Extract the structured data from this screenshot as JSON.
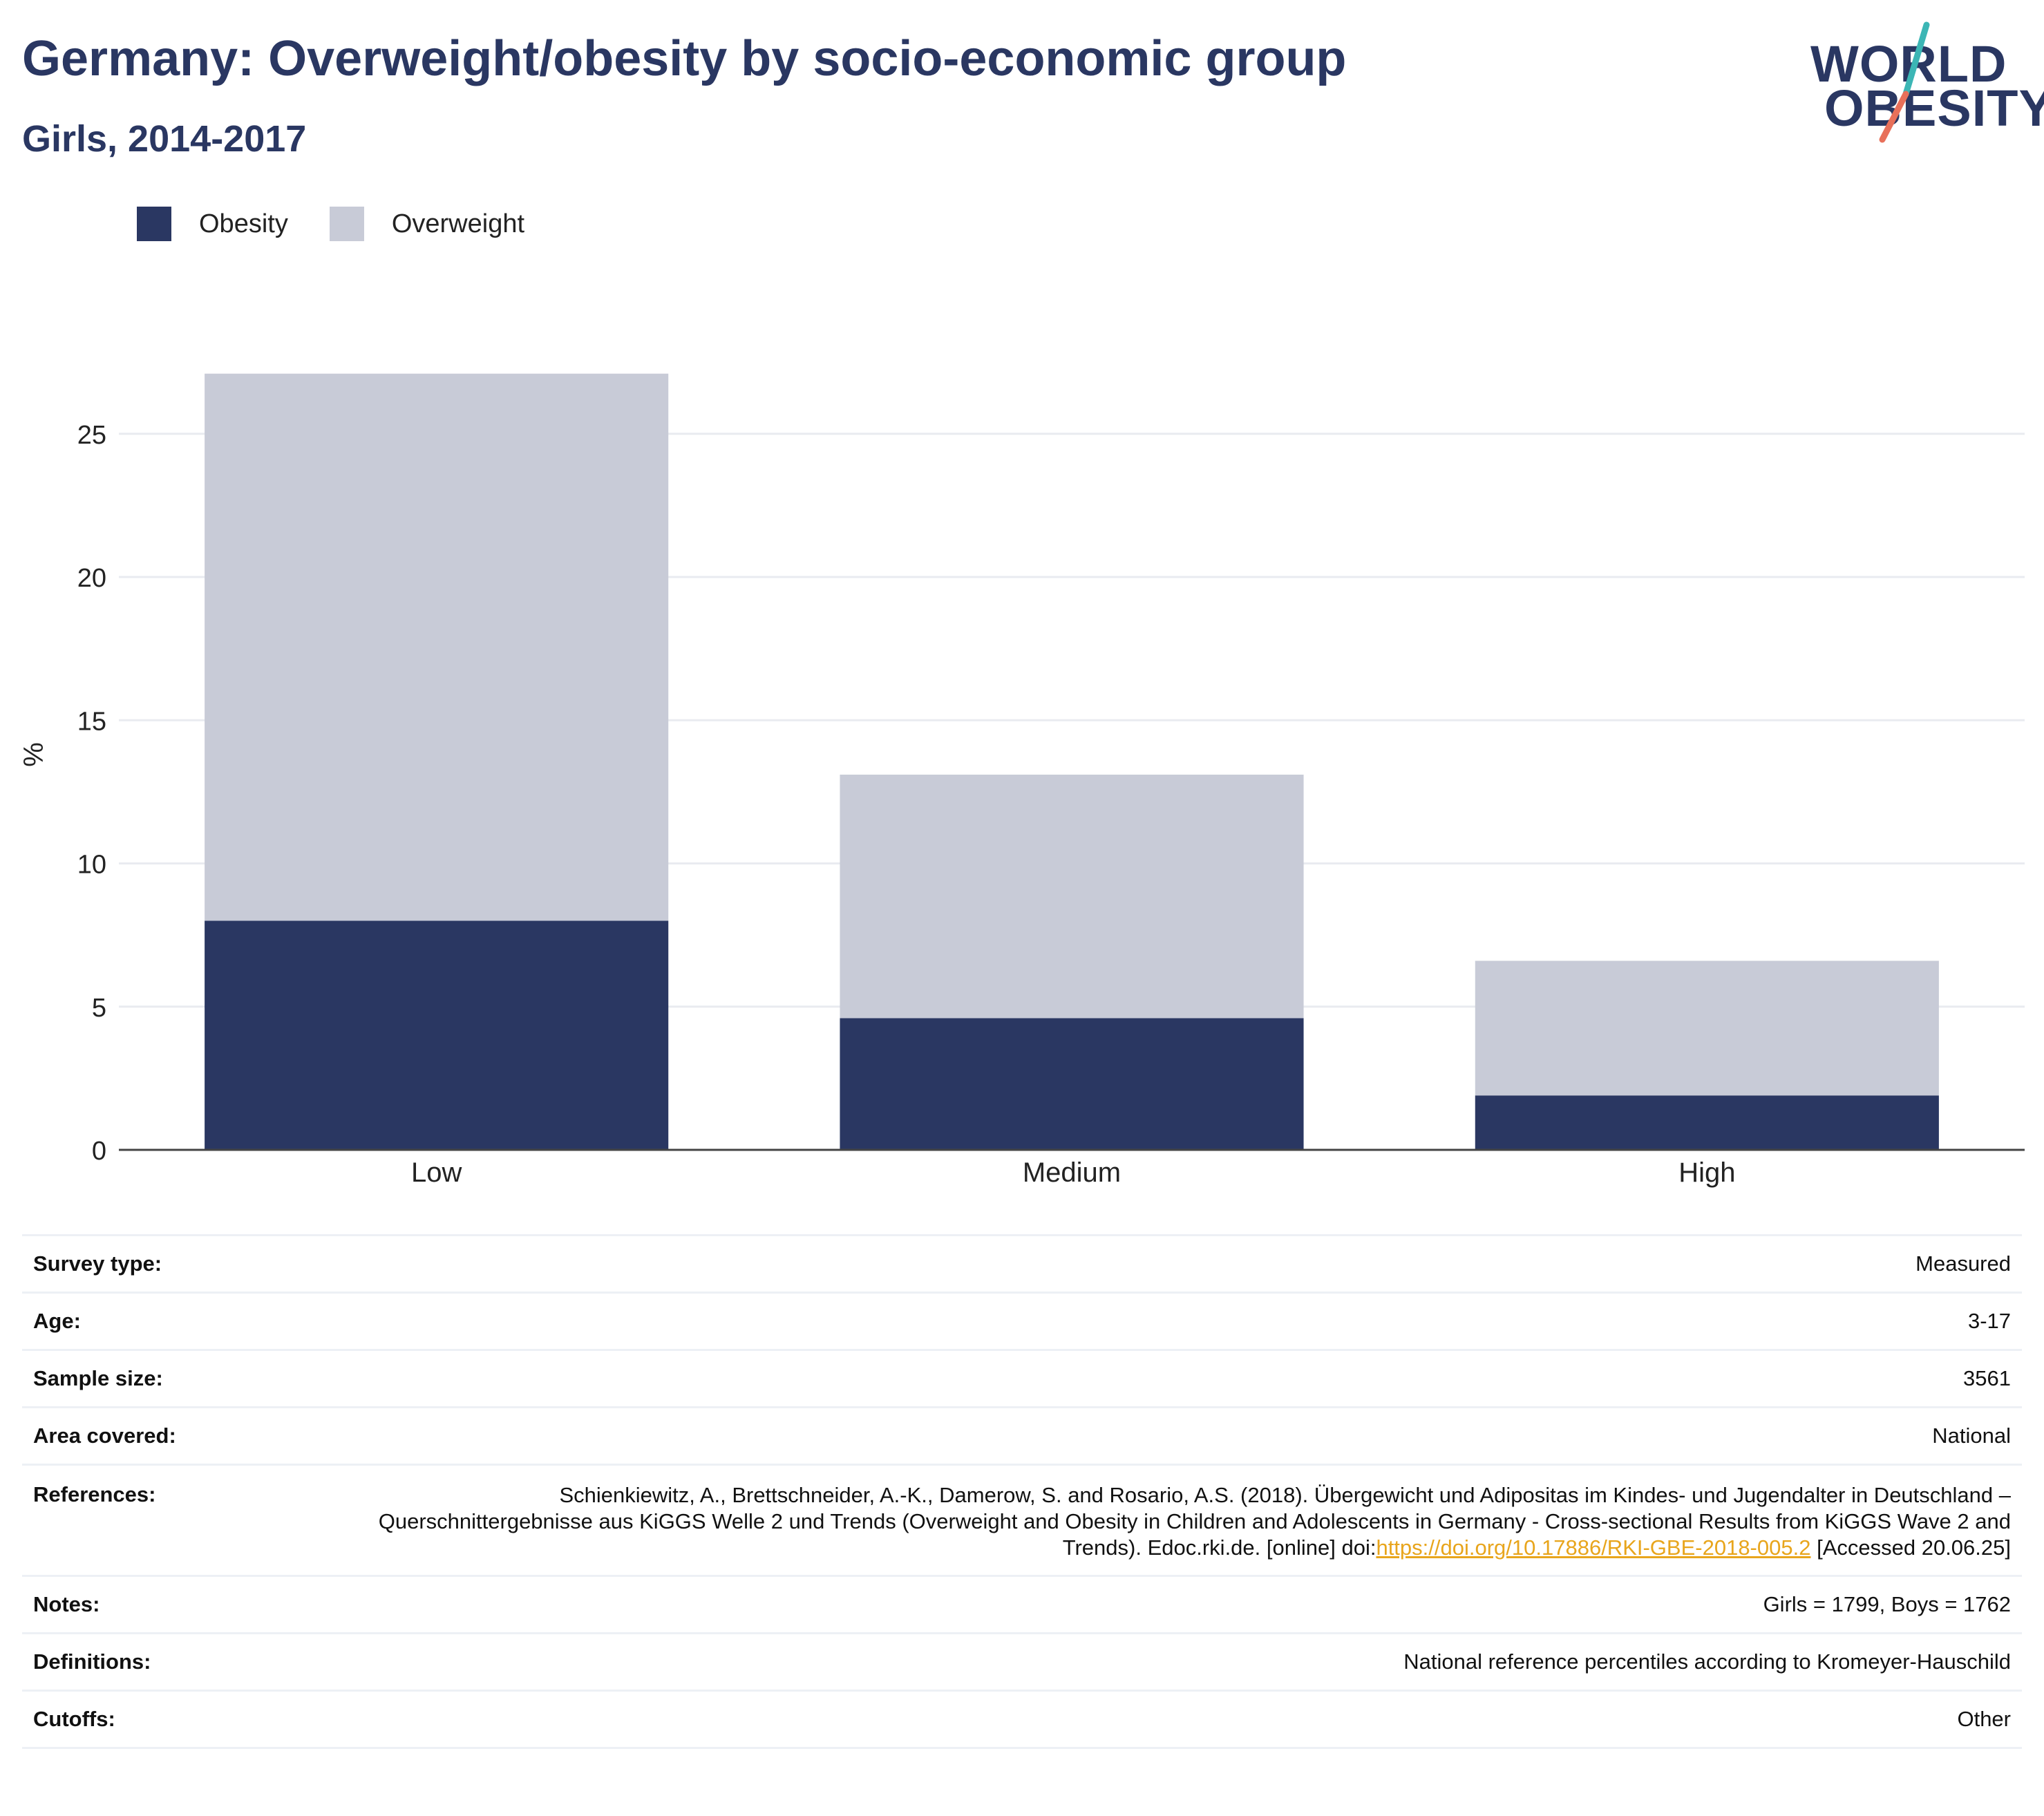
{
  "header": {
    "title": "Germany: Overweight/obesity by socio-economic group",
    "subtitle": "Girls, 2014-2017"
  },
  "logo": {
    "line1": "WORLD",
    "line2": "OBESITY",
    "accent_teal": "#3cb6b5",
    "accent_coral": "#e8705a"
  },
  "legend": {
    "items": [
      {
        "label": "Obesity",
        "color": "#2a3762"
      },
      {
        "label": "Overweight",
        "color": "#c8cbd7"
      }
    ]
  },
  "chart_data": {
    "type": "bar",
    "stacked": true,
    "categories": [
      "Low",
      "Medium",
      "High"
    ],
    "series": [
      {
        "name": "Obesity",
        "values": [
          8.0,
          4.6,
          1.9
        ],
        "color": "#2a3762"
      },
      {
        "name": "Overweight",
        "values": [
          19.1,
          8.5,
          4.7
        ],
        "color": "#c8cbd7"
      }
    ],
    "ylabel": "%",
    "ylim": [
      0,
      27.6
    ],
    "yticks": [
      0,
      5,
      10,
      15,
      20,
      25
    ],
    "grid": true
  },
  "info": {
    "rows": [
      {
        "label": "Survey type:",
        "value": "Measured"
      },
      {
        "label": "Age:",
        "value": "3-17"
      },
      {
        "label": "Sample size:",
        "value": "3561"
      },
      {
        "label": "Area covered:",
        "value": "National"
      },
      {
        "label": "References:",
        "value": "Schienkiewitz, A., Brettschneider, A.-K., Damerow, S. and Rosario, A.S. (2018). Übergewicht und Adipositas im Kindes- und Jugendalter in Deutschland – Querschnittergebnisse aus KiGGS Welle 2 und Trends (Overweight and Obesity in Children and Adolescents in Germany - Cross-sectional Results from KiGGS Wave 2 and Trends). Edoc.rki.de. [online] doi:",
        "link": "https://doi.org/10.17886/RKI-GBE-2018-005.2",
        "suffix": " [Accessed 20.06.25]"
      },
      {
        "label": "Notes:",
        "value": "Girls = 1799, Boys = 1762"
      },
      {
        "label": "Definitions:",
        "value": "National reference percentiles according to Kromeyer-Hauschild"
      },
      {
        "label": "Cutoffs:",
        "value": "Other"
      }
    ]
  }
}
